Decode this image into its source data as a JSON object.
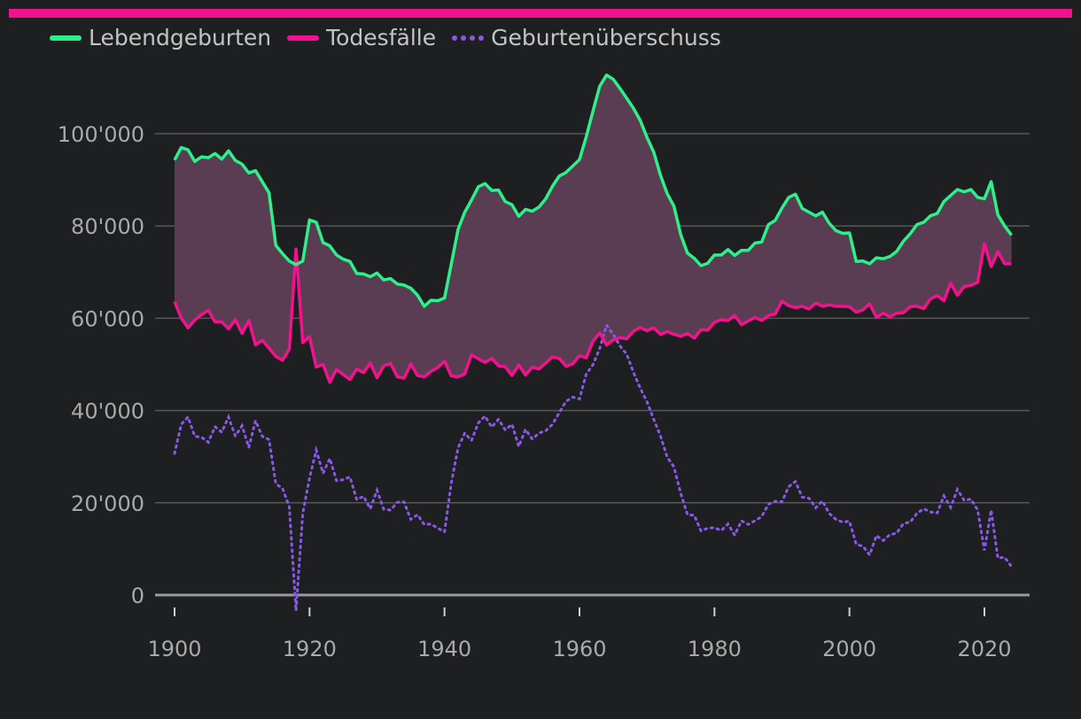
{
  "colors": {
    "background": "#1e1f21",
    "top_bar": "#f0138d",
    "births": "#2ef08a",
    "deaths": "#f0138d",
    "surplus": "#8a58e6",
    "fill": "#5a3d52",
    "grid": "#55575b",
    "baseline": "#9a9a9a",
    "text": "#a9a9a9"
  },
  "chart_data": {
    "type": "line",
    "title": "",
    "xlabel": "",
    "ylabel": "",
    "xlim": [
      1898,
      2026
    ],
    "ylim": [
      0,
      115000
    ],
    "x_ticks": [
      1900,
      1920,
      1940,
      1960,
      1980,
      2000,
      2020
    ],
    "x_tick_labels": [
      "1900",
      "1920",
      "1940",
      "1960",
      "1980",
      "2000",
      "2020"
    ],
    "y_ticks": [
      0,
      20000,
      40000,
      60000,
      80000,
      100000
    ],
    "y_tick_labels": [
      "0",
      "20'000",
      "40'000",
      "60'000",
      "80'000",
      "100'000"
    ],
    "grid": true,
    "legend": {
      "position": "top-left",
      "entries": [
        "Lebendgeburten",
        "Todesfälle",
        "Geburtenüberschuss"
      ]
    },
    "area_between": [
      "Lebendgeburten",
      "Todesfälle"
    ],
    "series": [
      {
        "name": "Lebendgeburten",
        "style": "solid",
        "x": [
          1900,
          1901,
          1902,
          1903,
          1904,
          1905,
          1906,
          1907,
          1908,
          1909,
          1910,
          1911,
          1912,
          1913,
          1914,
          1915,
          1916,
          1917,
          1918,
          1919,
          1920,
          1921,
          1922,
          1923,
          1924,
          1925,
          1926,
          1927,
          1928,
          1929,
          1930,
          1931,
          1932,
          1933,
          1934,
          1935,
          1936,
          1937,
          1938,
          1939,
          1940,
          1941,
          1942,
          1943,
          1944,
          1945,
          1946,
          1947,
          1948,
          1949,
          1950,
          1951,
          1952,
          1953,
          1954,
          1955,
          1956,
          1957,
          1958,
          1959,
          1960,
          1961,
          1962,
          1963,
          1964,
          1965,
          1966,
          1967,
          1968,
          1969,
          1970,
          1971,
          1972,
          1973,
          1974,
          1975,
          1976,
          1977,
          1978,
          1979,
          1980,
          1981,
          1982,
          1983,
          1984,
          1985,
          1986,
          1987,
          1988,
          1989,
          1990,
          1991,
          1992,
          1993,
          1994,
          1995,
          1996,
          1997,
          1998,
          1999,
          2000,
          2001,
          2002,
          2003,
          2004,
          2005,
          2006,
          2007,
          2008,
          2009,
          2010,
          2011,
          2012,
          2013,
          2014,
          2015,
          2016,
          2017,
          2018,
          2019,
          2020,
          2021,
          2022,
          2023,
          2024
        ],
        "values": [
          94300,
          97000,
          96500,
          94000,
          95000,
          94800,
          95700,
          94500,
          96300,
          94200,
          93400,
          91500,
          92000,
          89600,
          87200,
          75800,
          74000,
          72400,
          71600,
          72400,
          81300,
          80800,
          76400,
          75700,
          73700,
          72800,
          72300,
          69700,
          69600,
          69000,
          69800,
          68300,
          68600,
          67400,
          67200,
          66500,
          65000,
          62600,
          63900,
          63800,
          64400,
          71700,
          79200,
          83000,
          85600,
          88500,
          89200,
          87700,
          87800,
          85300,
          84600,
          82100,
          83600,
          83200,
          84100,
          85900,
          88600,
          90800,
          91600,
          93000,
          94400,
          99300,
          104900,
          110300,
          112700,
          111800,
          109800,
          107700,
          105500,
          102900,
          99200,
          96000,
          91000,
          87000,
          84300,
          78100,
          74100,
          73000,
          71400,
          71900,
          73700,
          73700,
          74900,
          73600,
          74700,
          74700,
          76300,
          76500,
          80300,
          81200,
          83900,
          86200,
          86900,
          83800,
          83000,
          82200,
          83000,
          80600,
          79000,
          78400,
          78500,
          72300,
          72400,
          71800,
          73100,
          72900,
          73400,
          74500,
          76700,
          78300,
          80300,
          80800,
          82200,
          82700,
          85300,
          86600,
          87900,
          87400,
          87900,
          86200,
          85900,
          89600,
          82400,
          80000,
          78000
        ]
      },
      {
        "name": "Todesfälle",
        "style": "solid",
        "x": [
          1900,
          1901,
          1902,
          1903,
          1904,
          1905,
          1906,
          1907,
          1908,
          1909,
          1910,
          1911,
          1912,
          1913,
          1914,
          1915,
          1916,
          1917,
          1918,
          1919,
          1920,
          1921,
          1922,
          1923,
          1924,
          1925,
          1926,
          1927,
          1928,
          1929,
          1930,
          1931,
          1932,
          1933,
          1934,
          1935,
          1936,
          1937,
          1938,
          1939,
          1940,
          1941,
          1942,
          1943,
          1944,
          1945,
          1946,
          1947,
          1948,
          1949,
          1950,
          1951,
          1952,
          1953,
          1954,
          1955,
          1956,
          1957,
          1958,
          1959,
          1960,
          1961,
          1962,
          1963,
          1964,
          1965,
          1966,
          1967,
          1968,
          1969,
          1970,
          1971,
          1972,
          1973,
          1974,
          1975,
          1976,
          1977,
          1978,
          1979,
          1980,
          1981,
          1982,
          1983,
          1984,
          1985,
          1986,
          1987,
          1988,
          1989,
          1990,
          1991,
          1992,
          1993,
          1994,
          1995,
          1996,
          1997,
          1998,
          1999,
          2000,
          2001,
          2002,
          2003,
          2004,
          2005,
          2006,
          2007,
          2008,
          2009,
          2010,
          2011,
          2012,
          2013,
          2014,
          2015,
          2016,
          2017,
          2018,
          2019,
          2020,
          2021,
          2022,
          2023,
          2024
        ],
        "values": [
          63600,
          60000,
          57900,
          59600,
          60800,
          61700,
          59200,
          59200,
          57700,
          59700,
          56700,
          59500,
          54200,
          55200,
          53500,
          51700,
          50900,
          53300,
          75000,
          54700,
          56000,
          49400,
          50000,
          46100,
          48900,
          47800,
          46700,
          49000,
          48200,
          50300,
          47100,
          49700,
          50200,
          47300,
          47000,
          50100,
          47600,
          47300,
          48500,
          49300,
          50700,
          47500,
          47300,
          47900,
          52100,
          51200,
          50400,
          51300,
          49700,
          49500,
          47600,
          49900,
          47700,
          49400,
          49000,
          50300,
          51600,
          51300,
          49600,
          50100,
          51900,
          51400,
          55000,
          56800,
          54200,
          55300,
          55800,
          55500,
          57200,
          58000,
          57300,
          57900,
          56500,
          57100,
          56500,
          56100,
          56700,
          55700,
          57500,
          57400,
          59100,
          59700,
          59500,
          60600,
          58600,
          59400,
          60200,
          59500,
          60600,
          60900,
          63700,
          62700,
          62300,
          62600,
          62000,
          63300,
          62600,
          62900,
          62600,
          62600,
          62500,
          61300,
          61800,
          63100,
          60200,
          61100,
          60300,
          61100,
          61200,
          62500,
          62600,
          62100,
          64200,
          64900,
          63800,
          67600,
          65000,
          66900,
          67100,
          67800,
          76200,
          71200,
          74400,
          71800,
          71800
        ]
      },
      {
        "name": "Geburtenüberschuss",
        "style": "dotted",
        "x": [
          1900,
          1901,
          1902,
          1903,
          1904,
          1905,
          1906,
          1907,
          1908,
          1909,
          1910,
          1911,
          1912,
          1913,
          1914,
          1915,
          1916,
          1917,
          1918,
          1919,
          1920,
          1921,
          1922,
          1923,
          1924,
          1925,
          1926,
          1927,
          1928,
          1929,
          1930,
          1931,
          1932,
          1933,
          1934,
          1935,
          1936,
          1937,
          1938,
          1939,
          1940,
          1941,
          1942,
          1943,
          1944,
          1945,
          1946,
          1947,
          1948,
          1949,
          1950,
          1951,
          1952,
          1953,
          1954,
          1955,
          1956,
          1957,
          1958,
          1959,
          1960,
          1961,
          1962,
          1963,
          1964,
          1965,
          1966,
          1967,
          1968,
          1969,
          1970,
          1971,
          1972,
          1973,
          1974,
          1975,
          1976,
          1977,
          1978,
          1979,
          1980,
          1981,
          1982,
          1983,
          1984,
          1985,
          1986,
          1987,
          1988,
          1989,
          1990,
          1991,
          1992,
          1993,
          1994,
          1995,
          1996,
          1997,
          1998,
          1999,
          2000,
          2001,
          2002,
          2003,
          2004,
          2005,
          2006,
          2007,
          2008,
          2009,
          2010,
          2011,
          2012,
          2013,
          2014,
          2015,
          2016,
          2017,
          2018,
          2019,
          2020,
          2021,
          2022,
          2023,
          2024
        ],
        "values": [
          30700,
          37000,
          38600,
          34400,
          34200,
          33100,
          36500,
          35300,
          38600,
          34500,
          36700,
          32000,
          37800,
          34400,
          33700,
          24100,
          23100,
          19100,
          -3400,
          17700,
          25300,
          31400,
          26400,
          29600,
          24800,
          25000,
          25600,
          20700,
          21400,
          18700,
          22700,
          18600,
          18400,
          20100,
          20200,
          16400,
          17400,
          15300,
          15400,
          14500,
          13700,
          24200,
          31900,
          35100,
          33500,
          37300,
          38800,
          36400,
          38100,
          35800,
          37000,
          32200,
          35900,
          33800,
          35100,
          35600,
          37000,
          39500,
          42000,
          42900,
          42500,
          47900,
          49900,
          53500,
          58500,
          56500,
          54000,
          52200,
          48300,
          44900,
          41900,
          38100,
          34500,
          29900,
          27800,
          22000,
          17400,
          17300,
          13900,
          14500,
          14600,
          14000,
          15400,
          13000,
          16100,
          15300,
          16100,
          17000,
          19700,
          20300,
          20200,
          23500,
          24600,
          21200,
          21000,
          18900,
          20400,
          17700,
          16400,
          15800,
          16000,
          11000,
          10600,
          8700,
          12900,
          11800,
          13100,
          13400,
          15500,
          15800,
          17700,
          18700,
          18000,
          17800,
          21500,
          19000,
          22900,
          20500,
          20800,
          18400,
          9700,
          18400,
          8000,
          8200,
          6200
        ]
      }
    ]
  }
}
